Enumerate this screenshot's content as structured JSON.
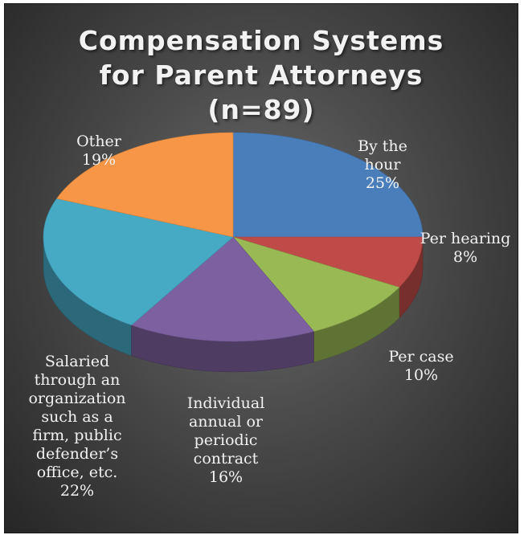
{
  "chart_data": {
    "type": "pie",
    "title": [
      "Compensation Systems",
      "for Parent Attorneys",
      "(n=89)"
    ],
    "slices": [
      {
        "label": [
          "By the",
          "hour"
        ],
        "value": 25,
        "display": "25%",
        "color": "#4a7ebb"
      },
      {
        "label": [
          "Per hearing"
        ],
        "value": 8,
        "display": "8%",
        "color": "#be4b48"
      },
      {
        "label": [
          "Per case"
        ],
        "value": 10,
        "display": "10%",
        "color": "#98b954"
      },
      {
        "label": [
          "Individual",
          "annual or",
          "periodic",
          "contract"
        ],
        "value": 16,
        "display": "16%",
        "color": "#7d60a0"
      },
      {
        "label": [
          "Salaried",
          "through an",
          "organization",
          "such as a",
          "firm, public",
          "defender’s",
          "office, etc."
        ],
        "value": 22,
        "display": "22%",
        "color": "#46aac5"
      },
      {
        "label": [
          "Other"
        ],
        "value": 19,
        "display": "19%",
        "color": "#f79646"
      }
    ]
  }
}
